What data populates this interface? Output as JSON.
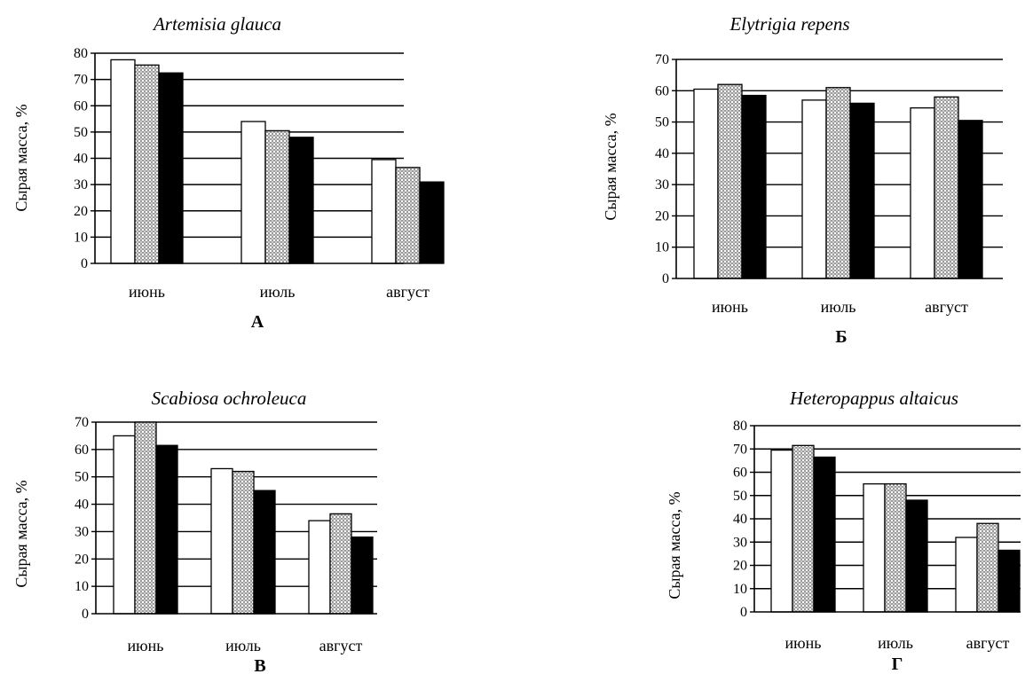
{
  "pattern_color": "#9a9a9a",
  "chart_data": [
    {
      "type": "bar",
      "title": "Artemisia glauca",
      "panel_label": "А",
      "ylabel": "Сырая масса, %",
      "xlabel": "",
      "ylim": [
        0,
        80
      ],
      "yticks": [
        0,
        10,
        20,
        30,
        40,
        50,
        60,
        70,
        80
      ],
      "grid": true,
      "categories": [
        "июнь",
        "июль",
        "август"
      ],
      "series": [
        {
          "fill": "white",
          "values": [
            77.5,
            54,
            39.5
          ]
        },
        {
          "fill": "pattern",
          "values": [
            75.5,
            50.5,
            36.5
          ]
        },
        {
          "fill": "black",
          "values": [
            72.5,
            48,
            31
          ]
        }
      ]
    },
    {
      "type": "bar",
      "title": "Elytrigia repens",
      "panel_label": "Б",
      "ylabel": "Сырая масса, %",
      "xlabel": "",
      "ylim": [
        0,
        70
      ],
      "yticks": [
        0,
        10,
        20,
        30,
        40,
        50,
        60,
        70
      ],
      "grid": true,
      "categories": [
        "июнь",
        "июль",
        "август"
      ],
      "series": [
        {
          "fill": "white",
          "values": [
            60.5,
            57,
            54.5
          ]
        },
        {
          "fill": "pattern",
          "values": [
            62,
            61,
            58
          ]
        },
        {
          "fill": "black",
          "values": [
            58.5,
            56,
            50.5
          ]
        }
      ]
    },
    {
      "type": "bar",
      "title": "Scabiosa ochroleuca",
      "panel_label": "В",
      "ylabel": "Сырая масса, %",
      "xlabel": "",
      "ylim": [
        0,
        70
      ],
      "yticks": [
        0,
        10,
        20,
        30,
        40,
        50,
        60,
        70
      ],
      "grid": true,
      "categories": [
        "июнь",
        "июль",
        "август"
      ],
      "series": [
        {
          "fill": "white",
          "values": [
            65,
            53,
            34
          ]
        },
        {
          "fill": "pattern",
          "values": [
            70,
            52,
            36.5
          ]
        },
        {
          "fill": "black",
          "values": [
            61.5,
            45,
            28
          ]
        }
      ]
    },
    {
      "type": "bar",
      "title": "Heteropappus altaicus",
      "panel_label": "Г",
      "ylabel": "Сырая масса, %",
      "xlabel": "",
      "ylim": [
        0,
        80
      ],
      "yticks": [
        0,
        10,
        20,
        30,
        40,
        50,
        60,
        70,
        80
      ],
      "grid": true,
      "categories": [
        "июнь",
        "июль",
        "август"
      ],
      "series": [
        {
          "fill": "white",
          "values": [
            69.5,
            55,
            32
          ]
        },
        {
          "fill": "pattern",
          "values": [
            71.5,
            55,
            38
          ]
        },
        {
          "fill": "black",
          "values": [
            66.5,
            48,
            26.5
          ]
        }
      ]
    }
  ]
}
